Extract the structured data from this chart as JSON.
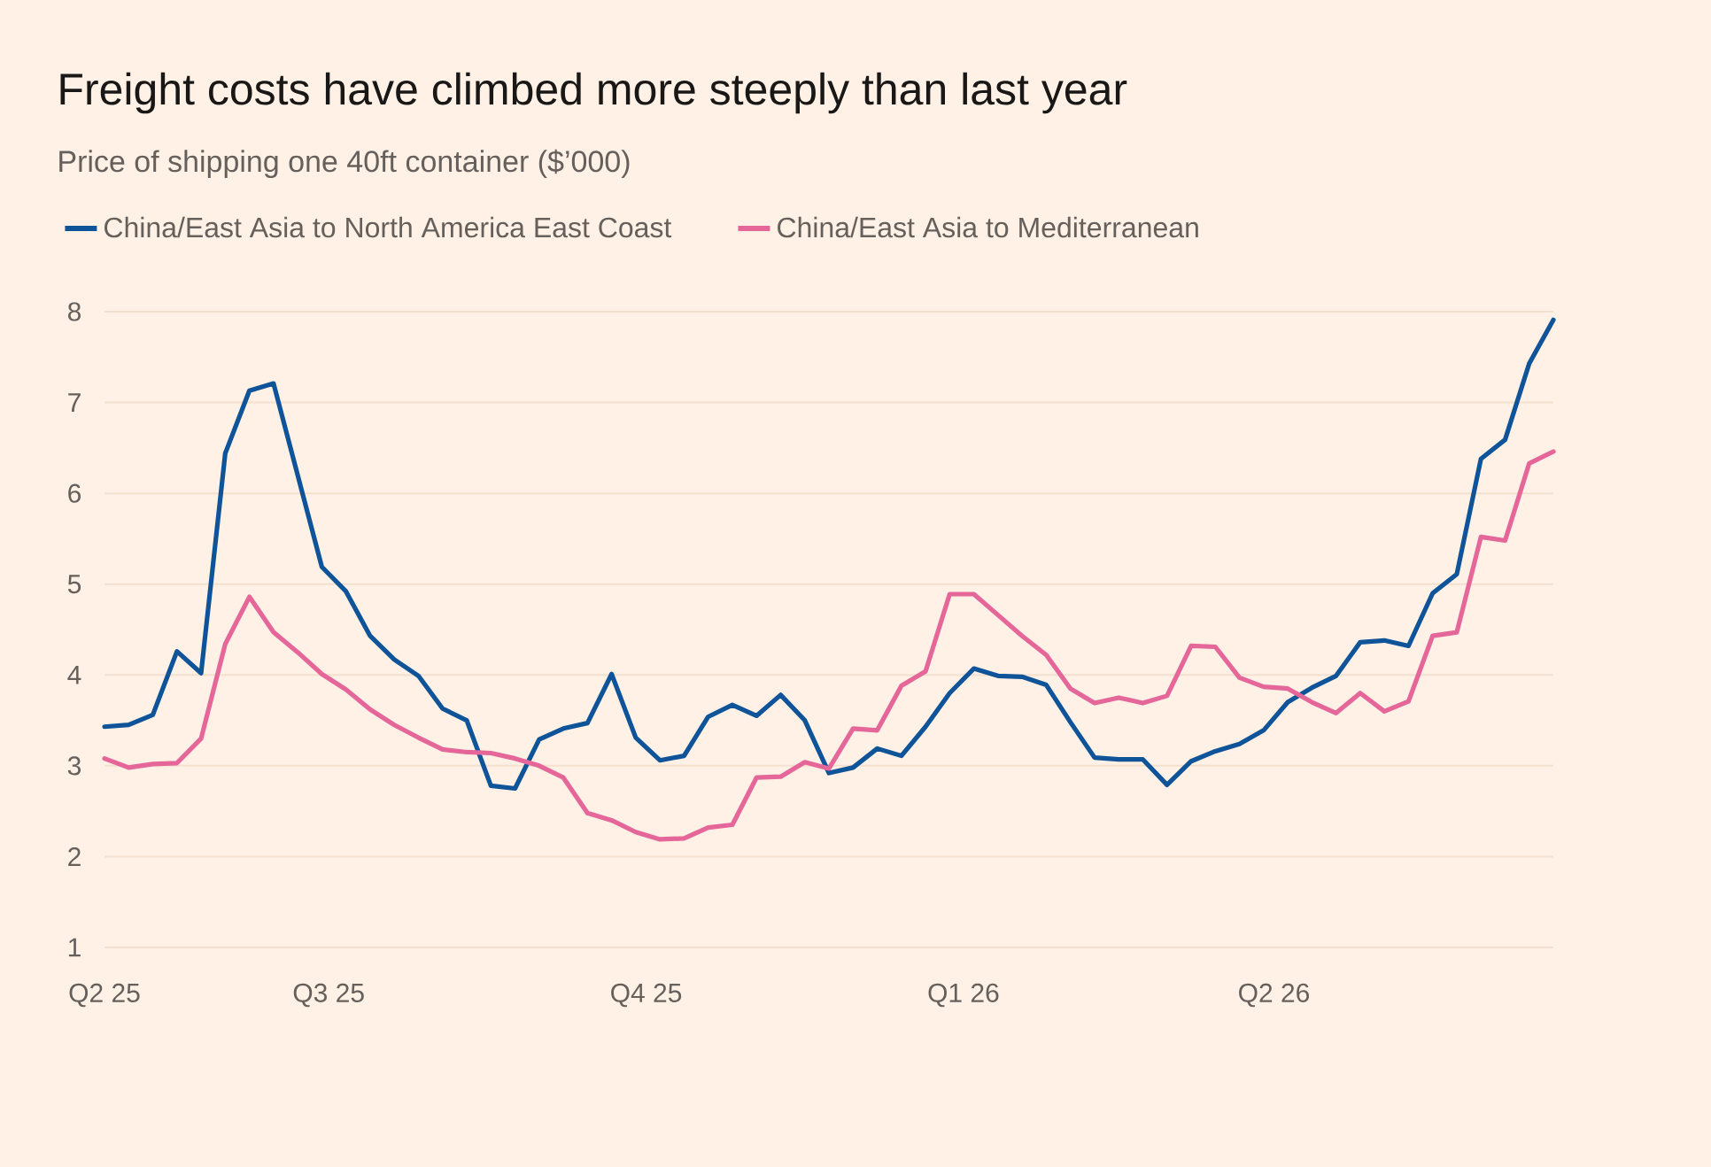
{
  "chart_data": {
    "type": "line",
    "title": "Freight costs have climbed more steeply than last year",
    "subtitle": "Price of shipping one 40ft container ($’000)",
    "x": [
      "2025-04-27",
      "2025-05-04",
      "2025-05-11",
      "2025-05-18",
      "2025-05-25",
      "2025-06-01",
      "2025-06-08",
      "2025-06-15",
      "2025-06-22",
      "2025-06-29",
      "2025-07-06",
      "2025-07-13",
      "2025-07-20",
      "2025-07-27",
      "2025-08-03",
      "2025-08-10",
      "2025-08-17",
      "2025-08-24",
      "2025-08-31",
      "2025-09-07",
      "2025-09-14",
      "2025-09-21",
      "2025-09-28",
      "2025-10-05",
      "2025-10-12",
      "2025-10-19",
      "2025-10-26",
      "2025-11-02",
      "2025-11-09",
      "2025-11-16",
      "2025-11-23",
      "2025-11-30",
      "2025-12-07",
      "2025-12-14",
      "2025-12-21",
      "2025-12-28",
      "2026-01-04",
      "2026-01-11",
      "2026-01-18",
      "2026-01-25",
      "2026-02-01",
      "2026-02-08",
      "2026-02-15",
      "2026-02-22",
      "2026-03-01",
      "2026-03-08",
      "2026-03-15",
      "2026-03-22",
      "2026-03-29",
      "2026-04-05",
      "2026-04-12",
      "2026-04-19",
      "2026-04-26",
      "2026-05-03",
      "2026-05-10",
      "2026-05-17",
      "2026-05-24",
      "2026-05-31",
      "2026-06-07",
      "2026-06-14",
      "2026-06-21"
    ],
    "series": [
      {
        "name": "China/East Asia to North America East Coast",
        "color": "#0f5499",
        "values": [
          3.43,
          3.45,
          3.56,
          4.26,
          4.02,
          6.44,
          7.13,
          7.21,
          6.2,
          5.19,
          4.92,
          4.43,
          4.17,
          3.99,
          3.63,
          3.5,
          2.78,
          2.75,
          3.29,
          3.41,
          3.47,
          4.01,
          3.31,
          3.06,
          3.11,
          3.54,
          3.67,
          3.55,
          3.78,
          3.5,
          2.92,
          2.98,
          3.19,
          3.11,
          3.43,
          3.8,
          4.07,
          3.99,
          3.98,
          3.89,
          3.48,
          3.09,
          3.07,
          3.07,
          2.79,
          3.05,
          3.16,
          3.24,
          3.39,
          3.7,
          3.86,
          3.99,
          4.36,
          4.38,
          4.32,
          4.9,
          5.11,
          6.38,
          6.59,
          7.43,
          7.91
        ]
      },
      {
        "name": "China/East Asia to Mediterranean",
        "color": "#e5679a",
        "values": [
          3.08,
          2.98,
          3.02,
          3.03,
          3.3,
          4.34,
          4.86,
          4.47,
          4.25,
          4.01,
          3.84,
          3.62,
          3.45,
          3.31,
          3.18,
          3.15,
          3.14,
          3.08,
          3.0,
          2.87,
          2.48,
          2.4,
          2.27,
          2.19,
          2.2,
          2.32,
          2.35,
          2.87,
          2.88,
          3.04,
          2.97,
          3.41,
          3.39,
          3.88,
          4.04,
          4.89,
          4.89,
          4.66,
          4.43,
          4.22,
          3.85,
          3.69,
          3.75,
          3.69,
          3.77,
          4.32,
          4.31,
          3.97,
          3.87,
          3.85,
          3.7,
          3.58,
          3.8,
          3.6,
          3.71,
          4.43,
          4.47,
          5.52,
          5.48,
          6.33,
          6.46
        ]
      }
    ],
    "xlim": [
      "2025-04-27",
      "2026-06-21"
    ],
    "xticks": [
      {
        "value": "2025-04-27",
        "label": "Q2 25"
      },
      {
        "value": "2025-07-01",
        "label": "Q3 25"
      },
      {
        "value": "2025-10-01",
        "label": "Q4 25"
      },
      {
        "value": "2026-01-01",
        "label": "Q1 26"
      },
      {
        "value": "2026-04-01",
        "label": "Q2 26"
      }
    ],
    "ylim": [
      1,
      8
    ],
    "yticks": [
      1,
      2,
      3,
      4,
      5,
      6,
      7,
      8
    ],
    "grid": "y",
    "legend": "top"
  }
}
